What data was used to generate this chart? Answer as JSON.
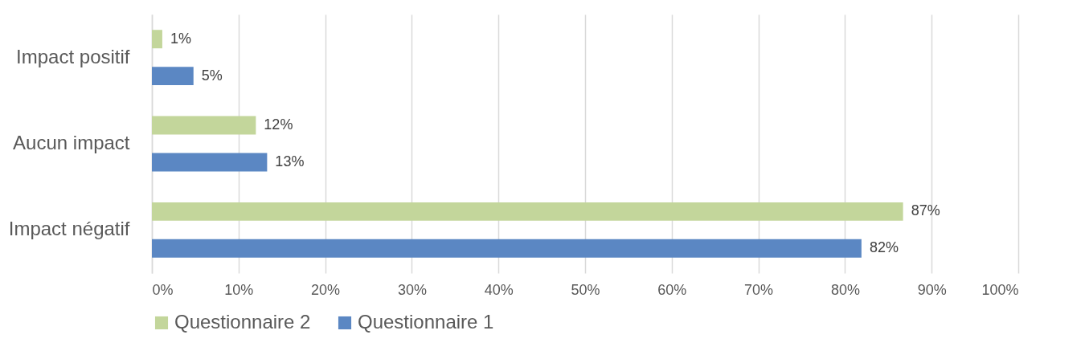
{
  "chart_data": {
    "type": "bar",
    "orientation": "horizontal",
    "categories": [
      "Impact positif",
      "Aucun impact",
      "Impact négatif"
    ],
    "series": [
      {
        "name": "Questionnaire 2",
        "color": "#c3d69b",
        "values": [
          1.2,
          12,
          86.7
        ],
        "value_labels": [
          "1%",
          "12%",
          "87%"
        ]
      },
      {
        "name": "Questionnaire 1",
        "color": "#5b87c3",
        "values": [
          4.8,
          13.3,
          81.9
        ],
        "value_labels": [
          "5%",
          "13%",
          "82%"
        ]
      }
    ],
    "xlim": [
      0,
      100
    ],
    "xticks": [
      {
        "value": 0,
        "label": "0%"
      },
      {
        "value": 10,
        "label": "10%"
      },
      {
        "value": 20,
        "label": "20%"
      },
      {
        "value": 30,
        "label": "30%"
      },
      {
        "value": 40,
        "label": "40%"
      },
      {
        "value": 50,
        "label": "50%"
      },
      {
        "value": 60,
        "label": "60%"
      },
      {
        "value": 70,
        "label": "70%"
      },
      {
        "value": 80,
        "label": "80%"
      },
      {
        "value": 90,
        "label": "90%"
      },
      {
        "value": 100,
        "label": "100%"
      }
    ],
    "grid": "x",
    "legend": "bottom"
  }
}
